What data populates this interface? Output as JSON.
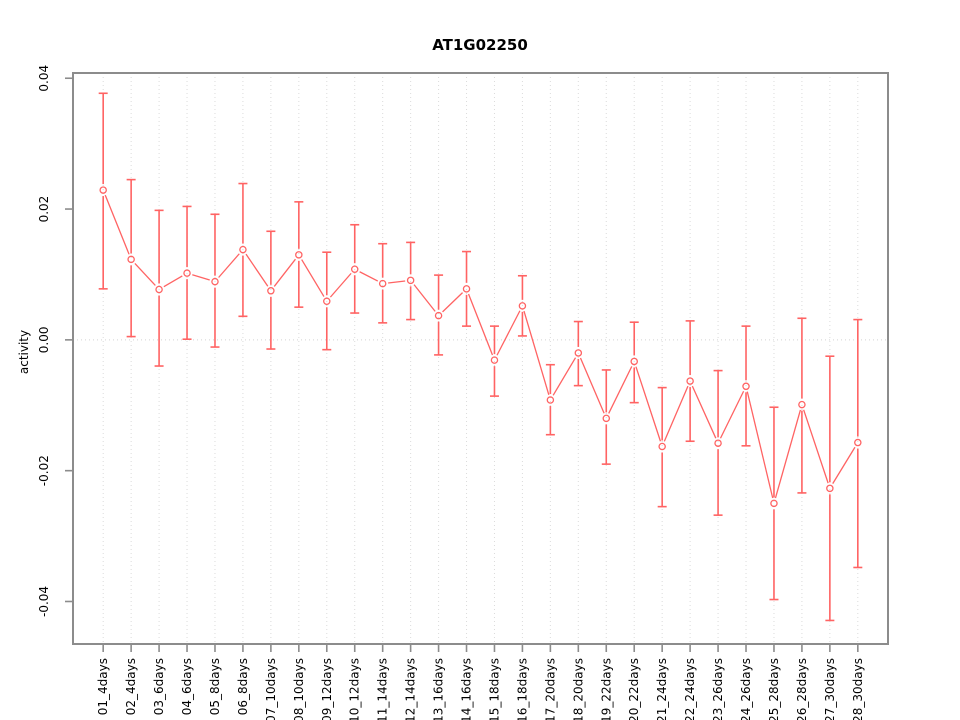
{
  "figure": {
    "title": "AT1G02250",
    "y_axis_label": "activity"
  },
  "chart_data": {
    "type": "line",
    "title": "AT1G02250",
    "xlabel": "",
    "ylabel": "activity",
    "legend_position": "none",
    "marker": "open-circle",
    "error_bars": true,
    "categories": [
      "01_4days",
      "02_4days",
      "03_6days",
      "04_6days",
      "05_8days",
      "06_8days",
      "07_10days",
      "08_10days",
      "09_12days",
      "10_12days",
      "11_14days",
      "12_14days",
      "13_16days",
      "14_16days",
      "15_18days",
      "16_18days",
      "17_20days",
      "18_20days",
      "19_22days",
      "20_22days",
      "21_24days",
      "22_24days",
      "23_26days",
      "24_26days",
      "25_28days",
      "26_28days",
      "27_30days",
      "28_30days"
    ],
    "series": [
      {
        "name": "activity",
        "values": [
          0.0229,
          0.0123,
          0.0077,
          0.0102,
          0.0089,
          0.0138,
          0.0075,
          0.013,
          0.0059,
          0.0108,
          0.0086,
          0.0091,
          0.0037,
          0.0078,
          -0.0031,
          0.0052,
          -0.0092,
          -0.002,
          -0.012,
          -0.0033,
          -0.0163,
          -0.0063,
          -0.0158,
          -0.0071,
          -0.025,
          -0.0099,
          -0.0227,
          -0.0157
        ],
        "error_lower": [
          0.0078,
          0.0005,
          -0.004,
          0.0001,
          -0.0011,
          0.0036,
          -0.0014,
          0.005,
          -0.0015,
          0.0041,
          0.0026,
          0.0031,
          -0.0023,
          0.0021,
          -0.0086,
          0.0006,
          -0.0145,
          -0.007,
          -0.019,
          -0.0096,
          -0.0255,
          -0.0155,
          -0.0268,
          -0.0162,
          -0.0397,
          -0.0234,
          -0.0429,
          -0.0348
        ],
        "error_upper": [
          0.0377,
          0.0245,
          0.0198,
          0.0204,
          0.0192,
          0.0239,
          0.0166,
          0.0211,
          0.0134,
          0.0176,
          0.0147,
          0.0149,
          0.0099,
          0.0135,
          0.0021,
          0.0098,
          -0.0038,
          0.0028,
          -0.0046,
          0.0027,
          -0.0073,
          0.0029,
          -0.0047,
          0.0021,
          -0.0103,
          0.0033,
          -0.0025,
          0.0031
        ]
      }
    ],
    "ylim": [
      -0.0465,
      0.0408
    ],
    "xlim": [
      -0.08,
      29.08
    ],
    "yticks": [
      -0.04,
      -0.02,
      0,
      0.02,
      0.04
    ],
    "ytick_labels": [
      "-0.04",
      "-0.02",
      "0.00",
      "0.02",
      "0.04"
    ],
    "grid": {
      "vertical": "dotted line at every category",
      "horizontal": "dotted line at y=0 only"
    },
    "colors": {
      "series": "#FF6363",
      "frame": "#8C8C8C",
      "ticks": "#8C8C8C",
      "grid": "#DBDBDB",
      "zero_line": "#D4D4D4",
      "text": "#000000",
      "background": "#FFFFFF"
    }
  }
}
